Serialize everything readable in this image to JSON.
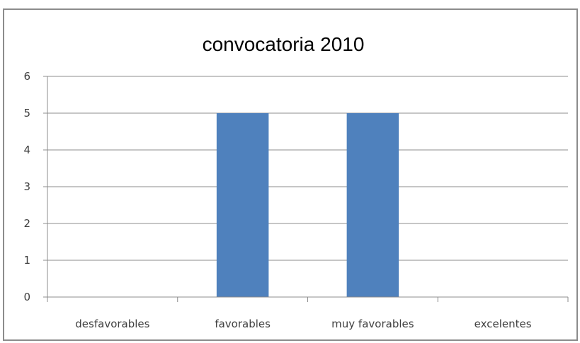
{
  "chart_data": {
    "type": "bar",
    "title": "convocatoria 2010",
    "categories": [
      "desfavorables",
      "favorables",
      "muy favorables",
      "excelentes"
    ],
    "series": [
      {
        "values": [
          0,
          5,
          5,
          0
        ]
      }
    ],
    "yticks": [
      "0",
      "1",
      "2",
      "3",
      "4",
      "5",
      "6"
    ],
    "ylim": [
      0,
      6
    ],
    "grid": true,
    "legend": "none",
    "colors": {
      "bar": "#4f81bd",
      "grid": "#8c8c8c",
      "axis": "#8c8c8c"
    }
  }
}
